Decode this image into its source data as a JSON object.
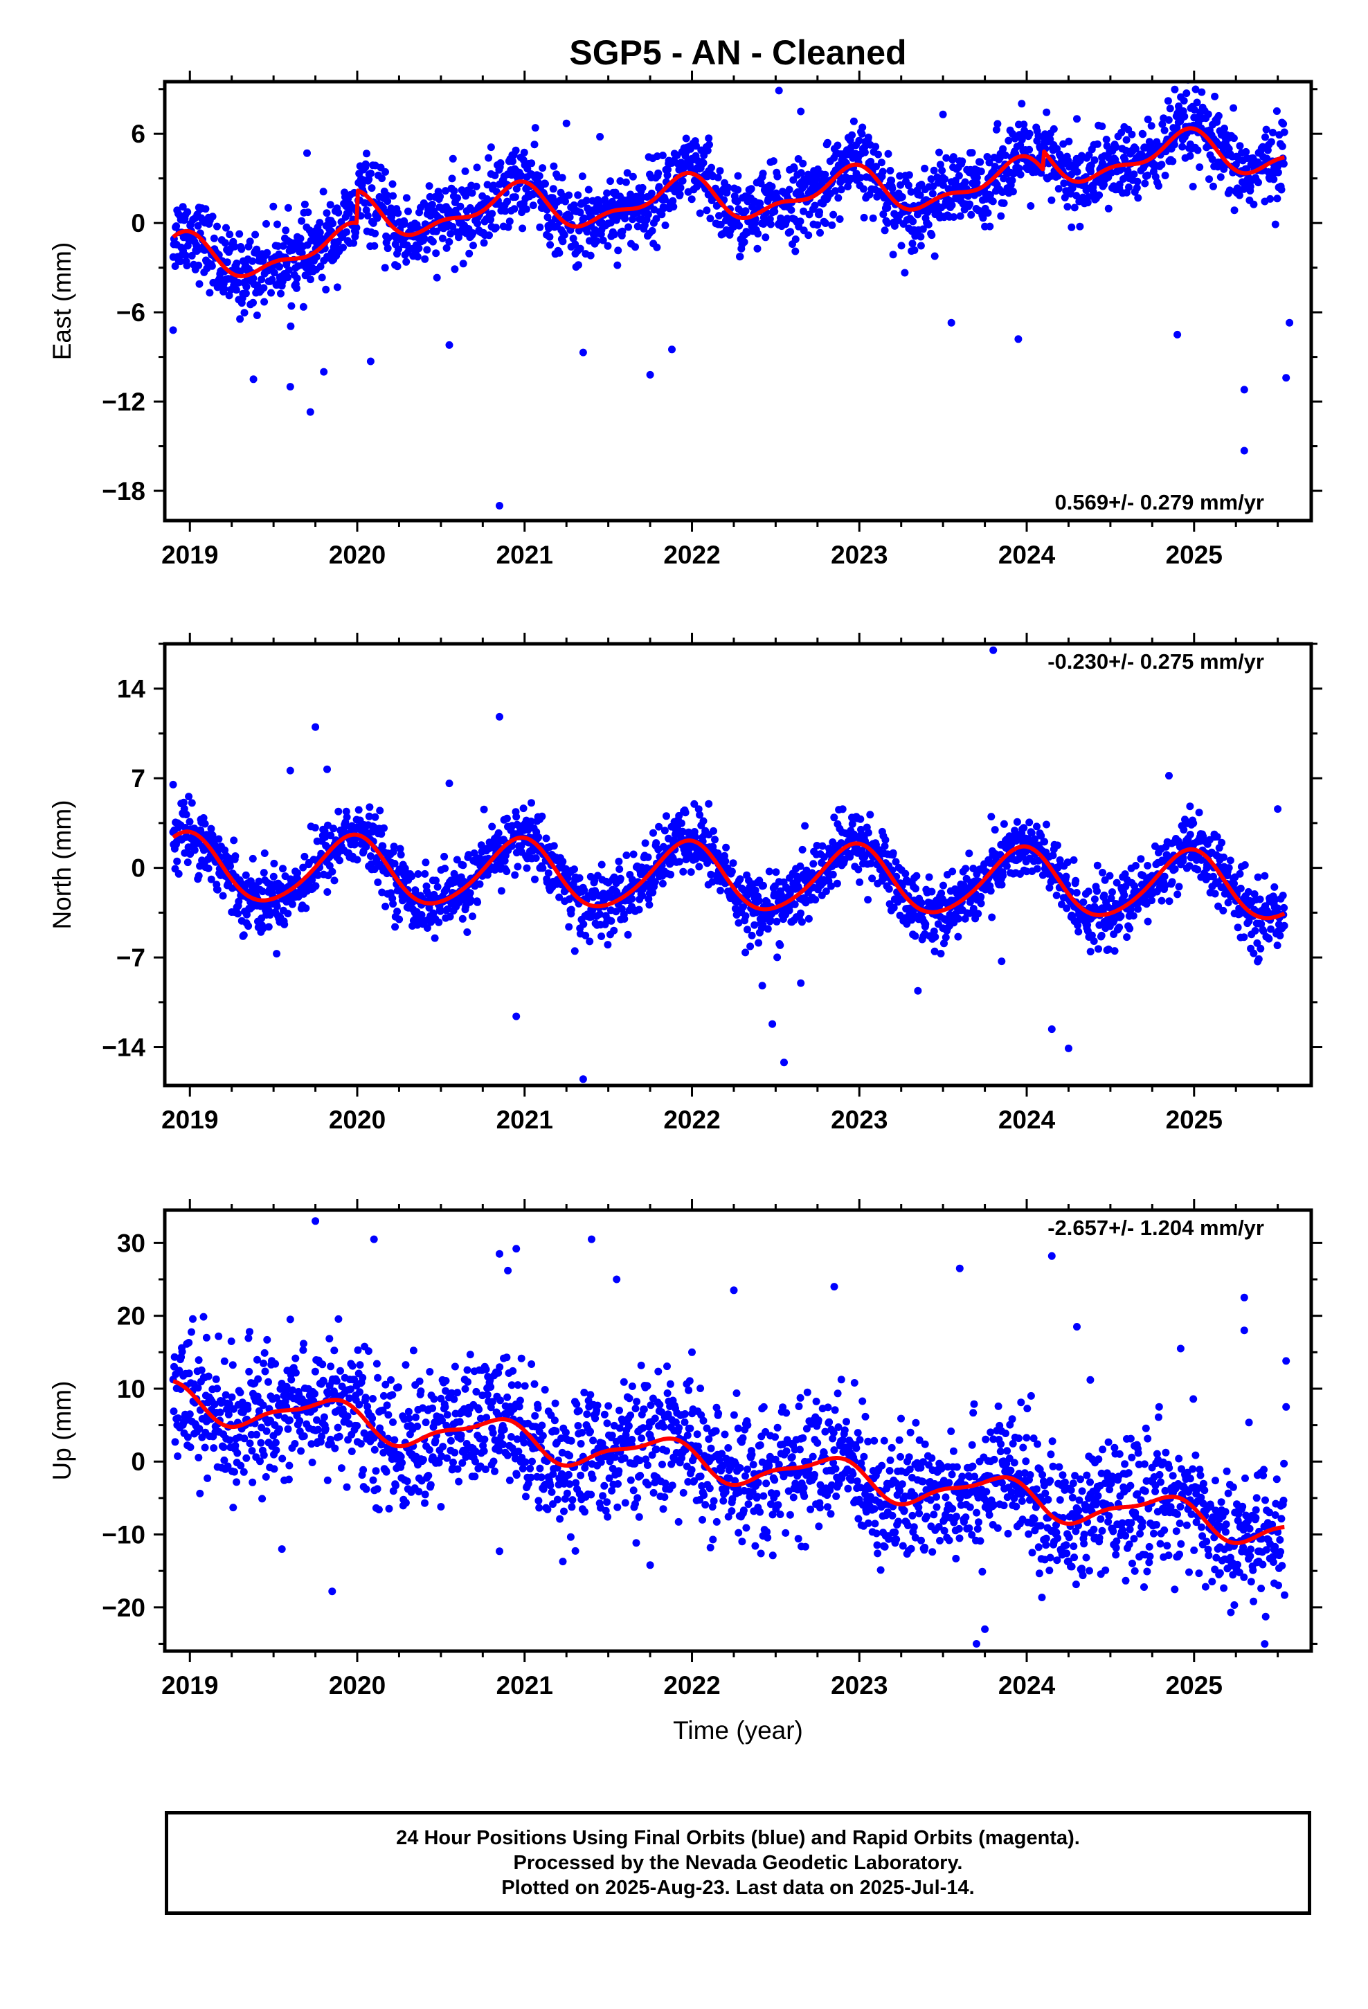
{
  "title": "SGP5  - AN - Cleaned",
  "xlabel": "Time (year)",
  "footer": {
    "line1": "24 Hour Positions Using Final Orbits (blue) and Rapid Orbits (magenta).",
    "line2": "Processed by the Nevada Geodetic Laboratory.",
    "line3": "Plotted on 2025-Aug-23. Last data on 2025-Jul-14."
  },
  "colors": {
    "points": "#0000ff",
    "model": "#ff0000",
    "axis": "#000000"
  },
  "chart_data": [
    {
      "type": "scatter",
      "ylabel": "East (mm)",
      "rate_text": "0.569+/- 0.279 mm/yr",
      "xlim": [
        2018.85,
        2025.7
      ],
      "ylim": [
        -20,
        9.5
      ],
      "xticks": [
        2019,
        2020,
        2021,
        2022,
        2023,
        2024,
        2025
      ],
      "yticks": [
        -18,
        -12,
        -6,
        0,
        6
      ],
      "ytick_labels": [
        "−18",
        "−12",
        "−6",
        "0",
        "6"
      ],
      "model": {
        "offset": -2.4,
        "rate": 0.569,
        "annual_amp": 1.3,
        "annual_phase": 1.4,
        "semi_amp": 0.6,
        "semi_phase": 0.3,
        "steps": [
          {
            "t": 2020.0,
            "dy": 2.2
          },
          {
            "t": 2024.1,
            "dy": 1.3
          }
        ],
        "t0": 2018.9
      },
      "scatter": {
        "sigma": 1.3
      },
      "outliers": [
        [
          2018.9,
          -7.2
        ],
        [
          2019.38,
          -10.5
        ],
        [
          2019.6,
          -11
        ],
        [
          2019.72,
          -12.7
        ],
        [
          2019.7,
          4.7
        ],
        [
          2019.8,
          -10
        ],
        [
          2020.08,
          -9.3
        ],
        [
          2020.55,
          -8.2
        ],
        [
          2020.85,
          -19
        ],
        [
          2021.35,
          -8.7
        ],
        [
          2021.75,
          -10.2
        ],
        [
          2021.88,
          -8.5
        ],
        [
          2022.1,
          5.7
        ],
        [
          2022.52,
          8.9
        ],
        [
          2022.65,
          7.5
        ],
        [
          2023.5,
          7.3
        ],
        [
          2023.55,
          -6.7
        ],
        [
          2023.95,
          -7.8
        ],
        [
          2024.3,
          7.0
        ],
        [
          2024.45,
          6.5
        ],
        [
          2024.9,
          -7.5
        ],
        [
          2025.3,
          -11.2
        ],
        [
          2025.3,
          -15.3
        ],
        [
          2025.55,
          -10.4
        ],
        [
          2025.57,
          -6.7
        ],
        [
          2020.8,
          5.1
        ],
        [
          2021.25,
          6.7
        ],
        [
          2021.45,
          5.8
        ]
      ]
    },
    {
      "type": "scatter",
      "ylabel": "North (mm)",
      "rate_text": "-0.230+/- 0.275 mm/yr",
      "xlim": [
        2018.85,
        2025.7
      ],
      "ylim": [
        -17,
        17.5
      ],
      "xticks": [
        2019,
        2020,
        2021,
        2022,
        2023,
        2024,
        2025
      ],
      "yticks": [
        -14,
        -7,
        0,
        7,
        14
      ],
      "ytick_labels": [
        "−14",
        "−7",
        "0",
        "7",
        "14"
      ],
      "model": {
        "offset": 0.0,
        "rate": -0.23,
        "annual_amp": 2.6,
        "annual_phase": 1.15,
        "semi_amp": 0.3,
        "semi_phase": 0.0,
        "steps": [],
        "t0": 2018.9
      },
      "scatter": {
        "sigma": 1.3
      },
      "outliers": [
        [
          2018.9,
          6.5
        ],
        [
          2019.6,
          7.6
        ],
        [
          2019.75,
          11
        ],
        [
          2019.82,
          7.7
        ],
        [
          2020.55,
          6.6
        ],
        [
          2020.85,
          11.8
        ],
        [
          2020.95,
          -11.6
        ],
        [
          2021.35,
          -16.5
        ],
        [
          2022.42,
          -9.2
        ],
        [
          2022.48,
          -12.2
        ],
        [
          2022.55,
          -15.2
        ],
        [
          2022.65,
          -9.0
        ],
        [
          2023.35,
          -9.6
        ],
        [
          2023.85,
          -7.3
        ],
        [
          2023.8,
          17
        ],
        [
          2024.15,
          -12.6
        ],
        [
          2024.25,
          -14.1
        ],
        [
          2024.85,
          7.2
        ],
        [
          2025.5,
          4.6
        ],
        [
          2021.3,
          -6.5
        ],
        [
          2022.1,
          5.0
        ]
      ]
    },
    {
      "type": "scatter",
      "ylabel": "Up (mm)",
      "rate_text": "-2.657+/- 1.204 mm/yr",
      "xlim": [
        2018.85,
        2025.7
      ],
      "ylim": [
        -26,
        34.5
      ],
      "xticks": [
        2019,
        2020,
        2021,
        2022,
        2023,
        2024,
        2025
      ],
      "yticks": [
        -20,
        -10,
        0,
        10,
        20,
        30
      ],
      "ytick_labels": [
        "−20",
        "−10",
        "0",
        "10",
        "20",
        "30"
      ],
      "model": {
        "offset": 8.5,
        "rate": -2.657,
        "annual_amp": 2.3,
        "annual_phase": 2.2,
        "semi_amp": 0.8,
        "semi_phase": 1.0,
        "steps": [],
        "t0": 2018.9
      },
      "scatter": {
        "sigma": 4.5
      },
      "outliers": [
        [
          2019.75,
          33
        ],
        [
          2019.85,
          -17.8
        ],
        [
          2020.1,
          30.5
        ],
        [
          2021.4,
          30.5
        ],
        [
          2020.85,
          28.5
        ],
        [
          2020.95,
          29.2
        ],
        [
          2020.9,
          26.2
        ],
        [
          2020.85,
          -12.3
        ],
        [
          2021.55,
          25
        ],
        [
          2022.0,
          15
        ],
        [
          2022.25,
          23.5
        ],
        [
          2022.85,
          24
        ],
        [
          2023.6,
          26.5
        ],
        [
          2023.75,
          -23
        ],
        [
          2023.7,
          -25
        ],
        [
          2024.15,
          28.2
        ],
        [
          2024.3,
          18.5
        ],
        [
          2024.38,
          11.2
        ],
        [
          2024.92,
          15.5
        ],
        [
          2025.3,
          22.5
        ],
        [
          2025.3,
          18
        ],
        [
          2025.55,
          13.8
        ],
        [
          2025.55,
          7.5
        ],
        [
          2021.75,
          -14.2
        ],
        [
          2020.5,
          -6.2
        ],
        [
          2019.1,
          17
        ],
        [
          2019.6,
          19.5
        ],
        [
          2019.55,
          -12
        ]
      ]
    }
  ]
}
